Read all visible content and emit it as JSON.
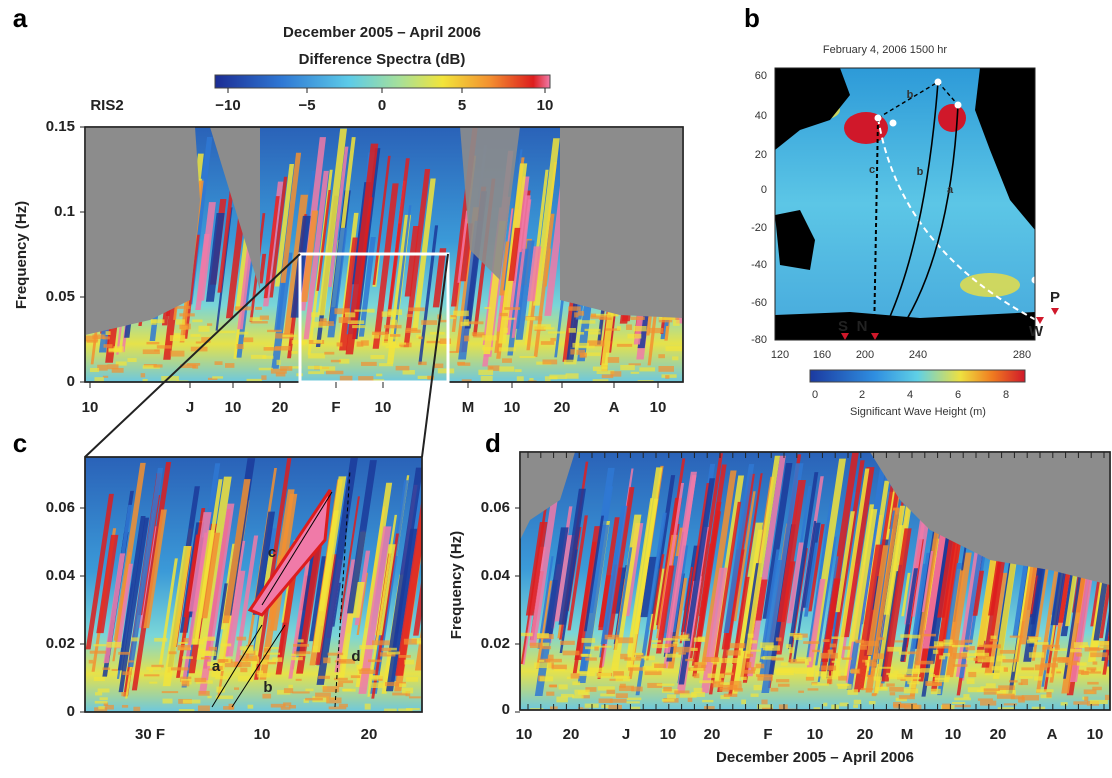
{
  "panel_a": {
    "label": "a",
    "title": "December  2005 – April  2006",
    "colorbar_title": "Difference  Spectra  (dB)",
    "colorbar_ticks": [
      "−10",
      "−5",
      "0",
      "5",
      "10"
    ],
    "station": "RIS2",
    "y_title": "Frequency  (Hz)",
    "y_ticks": [
      "0.15",
      "0.1",
      "0.05",
      "0"
    ],
    "x_ticks": [
      "10",
      "J",
      "10",
      "20",
      "F",
      "10",
      "M",
      "10",
      "20",
      "A",
      "10"
    ]
  },
  "panel_b": {
    "label": "b",
    "title": "February  4,  2006   1500 hr",
    "y_ticks": [
      "60",
      "40",
      "20",
      "0",
      "-20",
      "-40",
      "-60",
      "-80"
    ],
    "x_ticks": [
      "120",
      "160",
      "200",
      "240",
      "280"
    ],
    "colorbar_ticks": [
      "0",
      "2",
      "4",
      "6",
      "8"
    ],
    "colorbar_title": "Significant  Wave  Height  (m)",
    "path_labels": [
      "a",
      "b",
      "c",
      "b"
    ],
    "site_labels": [
      "S",
      "N",
      "W",
      "P"
    ]
  },
  "panel_c": {
    "label": "c",
    "y_ticks": [
      "0.06",
      "0.04",
      "0.02",
      "0"
    ],
    "x_ticks": [
      "30 F",
      "10",
      "20"
    ],
    "path_labels": [
      "a",
      "b",
      "c",
      "d"
    ]
  },
  "panel_d": {
    "label": "d",
    "y_title": "Frequency  (Hz)",
    "y_ticks": [
      "0.06",
      "0.04",
      "0.02",
      "0"
    ],
    "x_ticks": [
      "10",
      "20",
      "J",
      "10",
      "20",
      "F",
      "10",
      "20",
      "M",
      "10",
      "20",
      "A",
      "10"
    ],
    "x_title": "December  2005 – April  2006"
  }
}
